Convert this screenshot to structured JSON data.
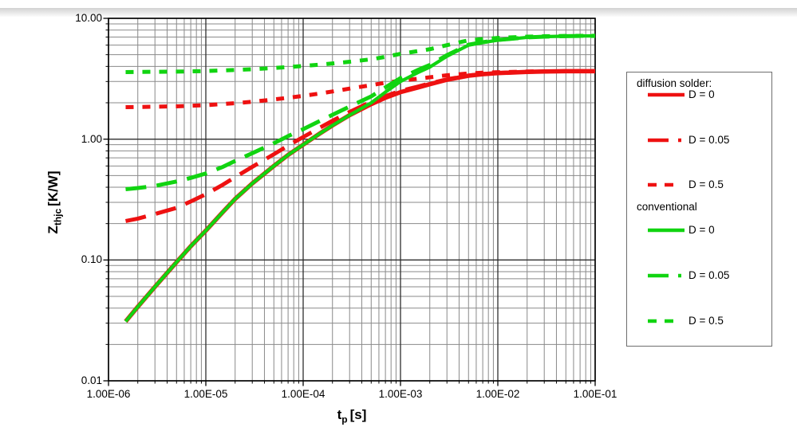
{
  "axes": {
    "y_title": {
      "base": "Z",
      "sub": "thjc",
      "unit": "[K/W]"
    },
    "x_title": {
      "base": "t",
      "sub": "p",
      "unit": "[s]"
    },
    "y_tick_labels": [
      "10.00",
      "1.00",
      "0.10",
      "0.01"
    ],
    "y_tick_values": [
      10,
      1,
      0.1,
      0.01
    ],
    "x_tick_labels": [
      "1.00E-06",
      "1.00E-05",
      "1.00E-04",
      "1.00E-03",
      "1.00E-02",
      "1.00E-01"
    ],
    "x_tick_values": [
      1e-06,
      1e-05,
      0.0001,
      0.001,
      0.01,
      0.1
    ]
  },
  "colors": {
    "red": "#ee1111",
    "green": "#11d411",
    "grid_major": "#2e2e2e",
    "grid_minor": "#8a8a8a",
    "frame": "#000000"
  },
  "legend": {
    "groups": [
      {
        "title": "diffusion solder:",
        "items": [
          {
            "label": "D = 0",
            "series_index": 0
          },
          {
            "label": "D = 0.05",
            "series_index": 1
          },
          {
            "label": "D = 0.5",
            "series_index": 2
          }
        ]
      },
      {
        "title": "conventional",
        "items": [
          {
            "label": "D = 0",
            "series_index": 3
          },
          {
            "label": "D = 0.05",
            "series_index": 4
          },
          {
            "label": "D = 0.5",
            "series_index": 5
          }
        ]
      }
    ]
  },
  "chart_data": {
    "type": "line",
    "title": "",
    "xlabel": "t_p [s]",
    "ylabel": "Z_thjc [K/W]",
    "x_scale": "log",
    "y_scale": "log",
    "xlim": [
      1e-06,
      0.1
    ],
    "ylim": [
      0.01,
      10
    ],
    "grid": "major and minor log gridlines, both axes",
    "legend_position": "right",
    "series": [
      {
        "name": "diffusion solder D = 0",
        "group": "diffusion solder",
        "label": "D = 0",
        "color": "#ee1111",
        "line_style": "solid",
        "points": [
          [
            1.5e-06,
            0.031
          ],
          [
            2e-06,
            0.041
          ],
          [
            3e-06,
            0.06
          ],
          [
            5e-06,
            0.096
          ],
          [
            7e-06,
            0.13
          ],
          [
            1e-05,
            0.175
          ],
          [
            1.5e-05,
            0.25
          ],
          [
            2e-05,
            0.32
          ],
          [
            3e-05,
            0.43
          ],
          [
            5e-05,
            0.6
          ],
          [
            7e-05,
            0.74
          ],
          [
            0.0001,
            0.9
          ],
          [
            0.00015,
            1.12
          ],
          [
            0.0002,
            1.3
          ],
          [
            0.0003,
            1.58
          ],
          [
            0.0005,
            1.95
          ],
          [
            0.0007,
            2.2
          ],
          [
            0.001,
            2.45
          ],
          [
            0.0015,
            2.67
          ],
          [
            0.002,
            2.85
          ],
          [
            0.003,
            3.1
          ],
          [
            0.005,
            3.35
          ],
          [
            0.007,
            3.45
          ],
          [
            0.01,
            3.52
          ],
          [
            0.02,
            3.6
          ],
          [
            0.03,
            3.63
          ],
          [
            0.05,
            3.65
          ],
          [
            0.07,
            3.65
          ],
          [
            0.1,
            3.65
          ]
        ]
      },
      {
        "name": "diffusion solder D = 0.05",
        "group": "diffusion solder",
        "label": "D = 0.05",
        "color": "#ee1111",
        "line_style": "long-dash",
        "points": [
          [
            1.5e-06,
            0.21
          ],
          [
            2e-06,
            0.22
          ],
          [
            3e-06,
            0.24
          ],
          [
            5e-06,
            0.27
          ],
          [
            7e-06,
            0.305
          ],
          [
            1e-05,
            0.35
          ],
          [
            1.5e-05,
            0.42
          ],
          [
            2e-05,
            0.485
          ],
          [
            3e-05,
            0.59
          ],
          [
            5e-05,
            0.75
          ],
          [
            7e-05,
            0.885
          ],
          [
            0.0001,
            1.04
          ],
          [
            0.00015,
            1.25
          ],
          [
            0.0002,
            1.42
          ],
          [
            0.0003,
            1.68
          ],
          [
            0.0005,
            2.04
          ],
          [
            0.0007,
            2.27
          ],
          [
            0.001,
            2.51
          ],
          [
            0.0015,
            2.72
          ],
          [
            0.002,
            2.89
          ],
          [
            0.003,
            3.13
          ],
          [
            0.005,
            3.36
          ],
          [
            0.007,
            3.46
          ],
          [
            0.01,
            3.53
          ],
          [
            0.02,
            3.6
          ],
          [
            0.03,
            3.63
          ],
          [
            0.05,
            3.65
          ],
          [
            0.07,
            3.65
          ],
          [
            0.1,
            3.65
          ]
        ]
      },
      {
        "name": "diffusion solder D = 0.5",
        "group": "diffusion solder",
        "label": "D = 0.5",
        "color": "#ee1111",
        "line_style": "short-dash",
        "points": [
          [
            1.5e-06,
            1.84
          ],
          [
            3e-06,
            1.855
          ],
          [
            5e-06,
            1.87
          ],
          [
            1e-05,
            1.91
          ],
          [
            2e-05,
            1.985
          ],
          [
            3e-05,
            2.04
          ],
          [
            5e-05,
            2.13
          ],
          [
            0.0001,
            2.28
          ],
          [
            0.00015,
            2.39
          ],
          [
            0.0002,
            2.48
          ],
          [
            0.0003,
            2.62
          ],
          [
            0.0005,
            2.8
          ],
          [
            0.0007,
            2.93
          ],
          [
            0.001,
            3.05
          ],
          [
            0.0015,
            3.16
          ],
          [
            0.002,
            3.25
          ],
          [
            0.003,
            3.38
          ],
          [
            0.005,
            3.5
          ],
          [
            0.007,
            3.55
          ],
          [
            0.01,
            3.58
          ],
          [
            0.02,
            3.63
          ],
          [
            0.03,
            3.64
          ],
          [
            0.05,
            3.65
          ],
          [
            0.1,
            3.65
          ]
        ]
      },
      {
        "name": "conventional D = 0",
        "group": "conventional",
        "label": "D = 0",
        "color": "#11d411",
        "line_style": "solid",
        "points": [
          [
            1.5e-06,
            0.031
          ],
          [
            2e-06,
            0.041
          ],
          [
            3e-06,
            0.06
          ],
          [
            5e-06,
            0.096
          ],
          [
            7e-06,
            0.13
          ],
          [
            1e-05,
            0.175
          ],
          [
            1.5e-05,
            0.25
          ],
          [
            2e-05,
            0.32
          ],
          [
            3e-05,
            0.43
          ],
          [
            5e-05,
            0.6
          ],
          [
            7e-05,
            0.74
          ],
          [
            0.0001,
            0.9
          ],
          [
            0.00015,
            1.12
          ],
          [
            0.0002,
            1.3
          ],
          [
            0.0003,
            1.58
          ],
          [
            0.0005,
            2.0
          ],
          [
            0.0007,
            2.45
          ],
          [
            0.001,
            3.0
          ],
          [
            0.0015,
            3.55
          ],
          [
            0.002,
            3.95
          ],
          [
            0.003,
            4.85
          ],
          [
            0.005,
            6.0
          ],
          [
            0.007,
            6.3
          ],
          [
            0.01,
            6.6
          ],
          [
            0.02,
            6.95
          ],
          [
            0.03,
            7.05
          ],
          [
            0.05,
            7.12
          ],
          [
            0.07,
            7.15
          ],
          [
            0.1,
            7.15
          ]
        ]
      },
      {
        "name": "conventional D = 0.05",
        "group": "conventional",
        "label": "D = 0.05",
        "color": "#11d411",
        "line_style": "long-dash",
        "points": [
          [
            1.5e-06,
            0.385
          ],
          [
            2e-06,
            0.394
          ],
          [
            3e-06,
            0.41
          ],
          [
            5e-06,
            0.446
          ],
          [
            7e-06,
            0.478
          ],
          [
            1e-05,
            0.52
          ],
          [
            1.5e-05,
            0.59
          ],
          [
            2e-05,
            0.66
          ],
          [
            3e-05,
            0.765
          ],
          [
            5e-05,
            0.925
          ],
          [
            7e-05,
            1.06
          ],
          [
            0.0001,
            1.21
          ],
          [
            0.00015,
            1.42
          ],
          [
            0.0002,
            1.59
          ],
          [
            0.0003,
            1.86
          ],
          [
            0.0005,
            2.26
          ],
          [
            0.0007,
            2.68
          ],
          [
            0.001,
            3.2
          ],
          [
            0.0015,
            3.73
          ],
          [
            0.002,
            4.11
          ],
          [
            0.003,
            4.96
          ],
          [
            0.005,
            6.05
          ],
          [
            0.007,
            6.34
          ],
          [
            0.01,
            6.62
          ],
          [
            0.02,
            6.95
          ],
          [
            0.03,
            7.05
          ],
          [
            0.05,
            7.12
          ],
          [
            0.07,
            7.15
          ],
          [
            0.1,
            7.15
          ]
        ]
      },
      {
        "name": "conventional D = 0.5",
        "group": "conventional",
        "label": "D = 0.5",
        "color": "#11d411",
        "line_style": "short-dash",
        "points": [
          [
            1.5e-06,
            3.59
          ],
          [
            3e-06,
            3.61
          ],
          [
            5e-06,
            3.62
          ],
          [
            1e-05,
            3.66
          ],
          [
            2e-05,
            3.74
          ],
          [
            3e-05,
            3.79
          ],
          [
            5e-05,
            3.88
          ],
          [
            0.0001,
            4.03
          ],
          [
            0.00015,
            4.14
          ],
          [
            0.0002,
            4.23
          ],
          [
            0.0003,
            4.37
          ],
          [
            0.0005,
            4.58
          ],
          [
            0.0007,
            4.8
          ],
          [
            0.001,
            5.08
          ],
          [
            0.0015,
            5.35
          ],
          [
            0.002,
            5.55
          ],
          [
            0.003,
            6.0
          ],
          [
            0.005,
            6.58
          ],
          [
            0.007,
            6.73
          ],
          [
            0.01,
            6.88
          ],
          [
            0.02,
            7.05
          ],
          [
            0.03,
            7.1
          ],
          [
            0.05,
            7.15
          ],
          [
            0.1,
            7.17
          ]
        ]
      }
    ]
  }
}
